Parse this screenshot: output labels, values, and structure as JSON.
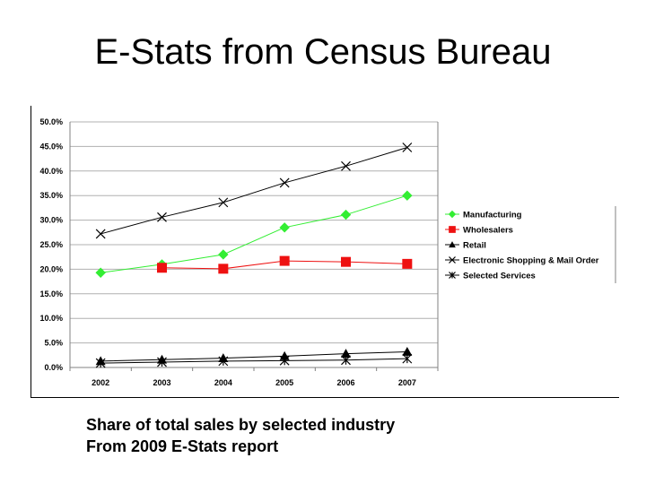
{
  "slide": {
    "title": "E-Stats from Census Bureau",
    "caption_line1": "Share of total sales by selected industry",
    "caption_line2": "From 2009 E-Stats report"
  },
  "chart_data": {
    "type": "line",
    "title": "",
    "xlabel": "",
    "ylabel": "",
    "x": [
      "2002",
      "2003",
      "2004",
      "2005",
      "2006",
      "2007"
    ],
    "y_ticks": [
      "0.0%",
      "5.0%",
      "10.0%",
      "15.0%",
      "20.0%",
      "25.0%",
      "30.0%",
      "35.0%",
      "40.0%",
      "45.0%",
      "50.0%"
    ],
    "ylim": [
      0,
      50
    ],
    "grid": "horizontal",
    "legend_position": "right",
    "series": [
      {
        "name": "Manufacturing",
        "values": [
          19.3,
          21.0,
          23.0,
          28.5,
          31.1,
          35.0
        ],
        "color": "#33ee33",
        "marker": "diamond"
      },
      {
        "name": "Wholesalers",
        "values": [
          null,
          20.3,
          20.1,
          21.7,
          21.5,
          21.1
        ],
        "color": "#ee1111",
        "marker": "square"
      },
      {
        "name": "Retail",
        "values": [
          1.3,
          1.6,
          1.9,
          2.3,
          2.8,
          3.2
        ],
        "color": "#000000",
        "marker": "triangle"
      },
      {
        "name": "Electronic Shopping & Mail Order",
        "values": [
          27.2,
          30.6,
          33.6,
          37.6,
          41.0,
          44.8
        ],
        "color": "#000000",
        "marker": "x"
      },
      {
        "name": "Selected Services",
        "values": [
          0.9,
          1.1,
          1.3,
          1.4,
          1.5,
          1.8
        ],
        "color": "#000000",
        "marker": "asterisk"
      }
    ]
  }
}
